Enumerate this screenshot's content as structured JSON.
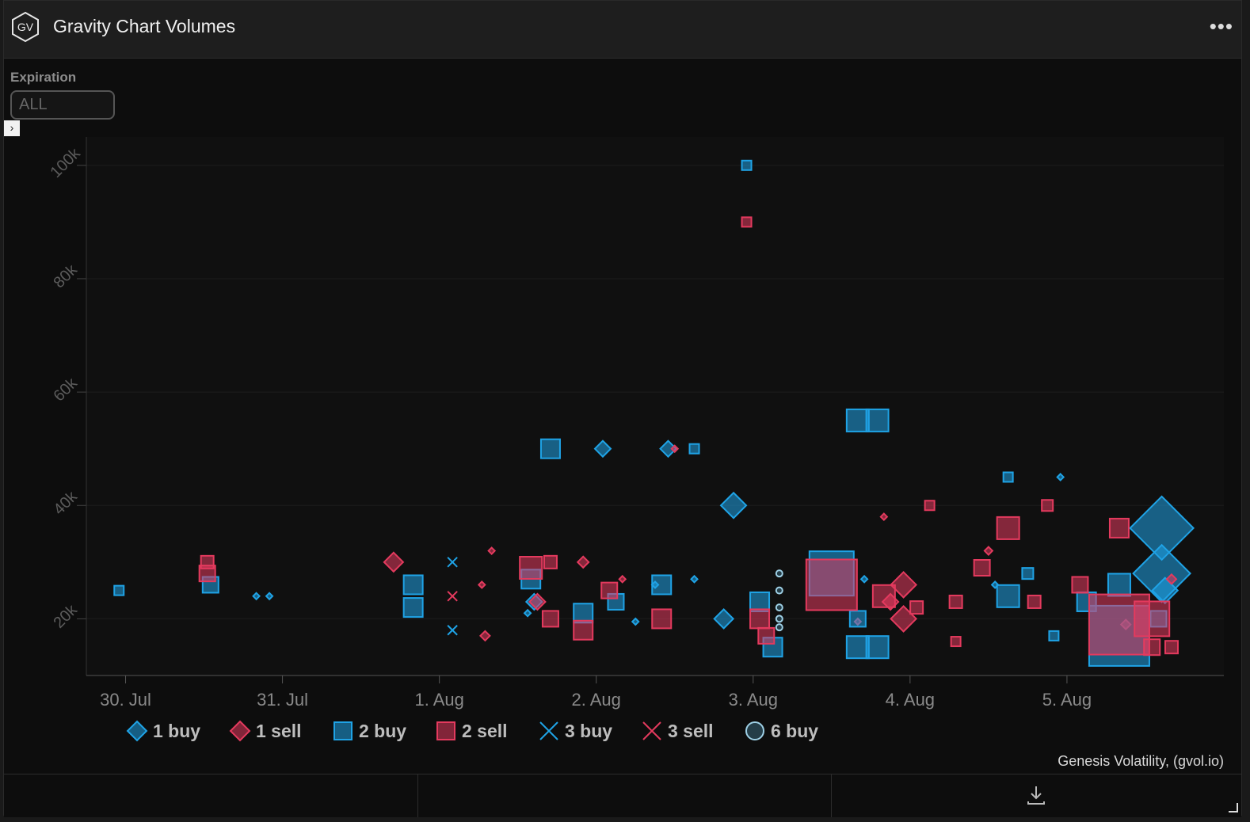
{
  "header": {
    "title": "Gravity Chart Volumes",
    "logo_text": "GV",
    "menu_icon": "more-dots-icon"
  },
  "filter": {
    "label": "Expiration",
    "value": "ALL"
  },
  "credit": "Genesis Volatility, (gvol.io)",
  "watermark": "GV",
  "colors": {
    "buy": "#1fa3e6",
    "sell": "#e43a5e",
    "six_buy": "#9ed0e6"
  },
  "chart_data": {
    "type": "scatter",
    "title": "",
    "xlabel": "",
    "ylabel": "",
    "x_range": [
      "2021-07-29T18:00",
      "2021-08-06T00:00"
    ],
    "ylim": [
      10000,
      105000
    ],
    "x_ticks": [
      {
        "date": "2021-07-30",
        "label": "30. Jul"
      },
      {
        "date": "2021-07-31",
        "label": "31. Jul"
      },
      {
        "date": "2021-08-01",
        "label": "1. Aug"
      },
      {
        "date": "2021-08-02",
        "label": "2. Aug"
      },
      {
        "date": "2021-08-03",
        "label": "3. Aug"
      },
      {
        "date": "2021-08-04",
        "label": "4. Aug"
      },
      {
        "date": "2021-08-05",
        "label": "5. Aug"
      }
    ],
    "y_ticks": [
      {
        "value": 20000,
        "label": "20k"
      },
      {
        "value": 40000,
        "label": "40k"
      },
      {
        "value": 60000,
        "label": "60k"
      },
      {
        "value": 80000,
        "label": "80k"
      },
      {
        "value": 100000,
        "label": "100k"
      }
    ],
    "legend": [
      {
        "label": "1 buy",
        "shape": "diamond",
        "side": "buy"
      },
      {
        "label": "1 sell",
        "shape": "diamond",
        "side": "sell"
      },
      {
        "label": "2 buy",
        "shape": "square",
        "side": "buy"
      },
      {
        "label": "2 sell",
        "shape": "square",
        "side": "sell"
      },
      {
        "label": "3 buy",
        "shape": "x",
        "side": "buy"
      },
      {
        "label": "3 sell",
        "shape": "x",
        "side": "sell"
      },
      {
        "label": "6 buy",
        "shape": "circle",
        "side": "six"
      }
    ],
    "legend_position": "bottom",
    "series": [
      {
        "name": "1 buy",
        "shape": "diamond",
        "side": "buy",
        "points": [
          {
            "x": "2021-07-30T20:00",
            "y": 24000,
            "s": 4
          },
          {
            "x": "2021-07-30T22:00",
            "y": 24000,
            "s": 4
          },
          {
            "x": "2021-08-01T14:30",
            "y": 23000,
            "s": 10
          },
          {
            "x": "2021-08-01T13:30",
            "y": 21000,
            "s": 4
          },
          {
            "x": "2021-08-02T01:00",
            "y": 50000,
            "s": 10
          },
          {
            "x": "2021-08-02T11:00",
            "y": 50000,
            "s": 10
          },
          {
            "x": "2021-08-02T21:00",
            "y": 40000,
            "s": 16
          },
          {
            "x": "2021-08-02T19:30",
            "y": 20000,
            "s": 12
          },
          {
            "x": "2021-08-02T09:00",
            "y": 26000,
            "s": 4
          },
          {
            "x": "2021-08-02T06:00",
            "y": 19500,
            "s": 4
          },
          {
            "x": "2021-08-02T15:00",
            "y": 27000,
            "s": 4
          },
          {
            "x": "2021-08-03T17:00",
            "y": 27000,
            "s": 4
          },
          {
            "x": "2021-08-04T13:00",
            "y": 26000,
            "s": 4
          },
          {
            "x": "2021-08-04T23:00",
            "y": 45000,
            "s": 4
          },
          {
            "x": "2021-08-05T14:30",
            "y": 36000,
            "s": 40
          },
          {
            "x": "2021-08-05T14:30",
            "y": 28000,
            "s": 36
          },
          {
            "x": "2021-08-05T15:00",
            "y": 25000,
            "s": 16
          }
        ]
      },
      {
        "name": "1 sell",
        "shape": "diamond",
        "side": "sell",
        "points": [
          {
            "x": "2021-07-31T17:00",
            "y": 30000,
            "s": 12
          },
          {
            "x": "2021-08-01T08:00",
            "y": 32000,
            "s": 4
          },
          {
            "x": "2021-08-01T06:30",
            "y": 26000,
            "s": 4
          },
          {
            "x": "2021-08-01T07:00",
            "y": 17000,
            "s": 6
          },
          {
            "x": "2021-08-01T15:00",
            "y": 23000,
            "s": 10
          },
          {
            "x": "2021-08-01T22:00",
            "y": 30000,
            "s": 7
          },
          {
            "x": "2021-08-02T04:00",
            "y": 27000,
            "s": 4
          },
          {
            "x": "2021-08-02T12:00",
            "y": 50000,
            "s": 4
          },
          {
            "x": "2021-08-03T16:00",
            "y": 19500,
            "s": 4
          },
          {
            "x": "2021-08-03T20:00",
            "y": 38000,
            "s": 4
          },
          {
            "x": "2021-08-03T21:00",
            "y": 23000,
            "s": 10
          },
          {
            "x": "2021-08-03T23:00",
            "y": 26000,
            "s": 16
          },
          {
            "x": "2021-08-03T23:00",
            "y": 20000,
            "s": 16
          },
          {
            "x": "2021-08-04T12:00",
            "y": 32000,
            "s": 5
          },
          {
            "x": "2021-08-05T09:00",
            "y": 19000,
            "s": 6
          },
          {
            "x": "2021-08-05T16:00",
            "y": 27000,
            "s": 6
          }
        ]
      },
      {
        "name": "2 buy",
        "shape": "square",
        "side": "buy",
        "points": [
          {
            "x": "2021-07-29T23:00",
            "y": 25000,
            "s": 6
          },
          {
            "x": "2021-07-30T13:00",
            "y": 26000,
            "s": 10
          },
          {
            "x": "2021-07-31T20:00",
            "y": 26000,
            "s": 12
          },
          {
            "x": "2021-07-31T20:00",
            "y": 22000,
            "s": 12
          },
          {
            "x": "2021-08-01T17:00",
            "y": 50000,
            "s": 12
          },
          {
            "x": "2021-08-01T14:00",
            "y": 27000,
            "s": 12
          },
          {
            "x": "2021-08-01T22:00",
            "y": 21000,
            "s": 12
          },
          {
            "x": "2021-08-02T03:00",
            "y": 23000,
            "s": 10
          },
          {
            "x": "2021-08-02T10:00",
            "y": 26000,
            "s": 12
          },
          {
            "x": "2021-08-02T15:00",
            "y": 50000,
            "s": 6
          },
          {
            "x": "2021-08-02T23:00",
            "y": 100000,
            "s": 6
          },
          {
            "x": "2021-08-03T01:00",
            "y": 23000,
            "s": 12
          },
          {
            "x": "2021-08-03T03:00",
            "y": 15000,
            "s": 12
          },
          {
            "x": "2021-08-03T12:00",
            "y": 28000,
            "s": 28
          },
          {
            "x": "2021-08-03T16:00",
            "y": 55000,
            "s": 14
          },
          {
            "x": "2021-08-03T19:00",
            "y": 55000,
            "s": 14
          },
          {
            "x": "2021-08-03T16:00",
            "y": 15000,
            "s": 14
          },
          {
            "x": "2021-08-03T19:00",
            "y": 15000,
            "s": 14
          },
          {
            "x": "2021-08-03T16:00",
            "y": 20000,
            "s": 10
          },
          {
            "x": "2021-08-04T15:00",
            "y": 24000,
            "s": 14
          },
          {
            "x": "2021-08-04T15:00",
            "y": 45000,
            "s": 6
          },
          {
            "x": "2021-08-04T18:00",
            "y": 28000,
            "s": 7
          },
          {
            "x": "2021-08-04T22:00",
            "y": 17000,
            "s": 6
          },
          {
            "x": "2021-08-05T03:00",
            "y": 23000,
            "s": 12
          },
          {
            "x": "2021-08-05T08:00",
            "y": 26000,
            "s": 14
          },
          {
            "x": "2021-08-05T08:00",
            "y": 17000,
            "s": 38
          },
          {
            "x": "2021-08-05T14:00",
            "y": 20000,
            "s": 10
          }
        ]
      },
      {
        "name": "2 sell",
        "shape": "square",
        "side": "sell",
        "points": [
          {
            "x": "2021-07-30T12:30",
            "y": 30000,
            "s": 8
          },
          {
            "x": "2021-07-30T12:30",
            "y": 28000,
            "s": 10
          },
          {
            "x": "2021-08-01T14:00",
            "y": 29000,
            "s": 14
          },
          {
            "x": "2021-08-01T17:00",
            "y": 30000,
            "s": 8
          },
          {
            "x": "2021-08-01T17:00",
            "y": 20000,
            "s": 10
          },
          {
            "x": "2021-08-01T22:00",
            "y": 18000,
            "s": 12
          },
          {
            "x": "2021-08-02T02:00",
            "y": 25000,
            "s": 10
          },
          {
            "x": "2021-08-02T10:00",
            "y": 20000,
            "s": 12
          },
          {
            "x": "2021-08-02T23:00",
            "y": 90000,
            "s": 6
          },
          {
            "x": "2021-08-03T01:00",
            "y": 20000,
            "s": 12
          },
          {
            "x": "2021-08-03T02:00",
            "y": 17000,
            "s": 10
          },
          {
            "x": "2021-08-03T12:00",
            "y": 26000,
            "s": 32
          },
          {
            "x": "2021-08-03T20:00",
            "y": 24000,
            "s": 14
          },
          {
            "x": "2021-08-04T01:00",
            "y": 22000,
            "s": 8
          },
          {
            "x": "2021-08-04T07:00",
            "y": 23000,
            "s": 8
          },
          {
            "x": "2021-08-04T07:00",
            "y": 16000,
            "s": 6
          },
          {
            "x": "2021-08-04T03:00",
            "y": 40000,
            "s": 6
          },
          {
            "x": "2021-08-04T15:00",
            "y": 36000,
            "s": 14
          },
          {
            "x": "2021-08-04T11:00",
            "y": 29000,
            "s": 10
          },
          {
            "x": "2021-08-04T21:00",
            "y": 40000,
            "s": 7
          },
          {
            "x": "2021-08-04T19:00",
            "y": 23000,
            "s": 8
          },
          {
            "x": "2021-08-05T02:00",
            "y": 26000,
            "s": 10
          },
          {
            "x": "2021-08-05T08:00",
            "y": 19000,
            "s": 38
          },
          {
            "x": "2021-08-05T08:00",
            "y": 36000,
            "s": 12
          },
          {
            "x": "2021-08-05T13:00",
            "y": 20000,
            "s": 22
          },
          {
            "x": "2021-08-05T13:00",
            "y": 15000,
            "s": 10
          },
          {
            "x": "2021-08-05T16:00",
            "y": 15000,
            "s": 8
          }
        ]
      },
      {
        "name": "3 buy",
        "shape": "x",
        "side": "buy",
        "points": [
          {
            "x": "2021-08-01T02:00",
            "y": 30000,
            "s": 6
          },
          {
            "x": "2021-08-01T02:00",
            "y": 18000,
            "s": 6
          }
        ]
      },
      {
        "name": "3 sell",
        "shape": "x",
        "side": "sell",
        "points": [
          {
            "x": "2021-08-01T02:00",
            "y": 24000,
            "s": 6
          }
        ]
      },
      {
        "name": "6 buy",
        "shape": "circle",
        "side": "six",
        "points": [
          {
            "x": "2021-08-03T04:00",
            "y": 28000,
            "s": 4
          },
          {
            "x": "2021-08-03T04:00",
            "y": 25000,
            "s": 4
          },
          {
            "x": "2021-08-03T04:00",
            "y": 22000,
            "s": 4
          },
          {
            "x": "2021-08-03T04:00",
            "y": 20000,
            "s": 4
          },
          {
            "x": "2021-08-03T04:00",
            "y": 18500,
            "s": 4
          }
        ]
      }
    ]
  }
}
